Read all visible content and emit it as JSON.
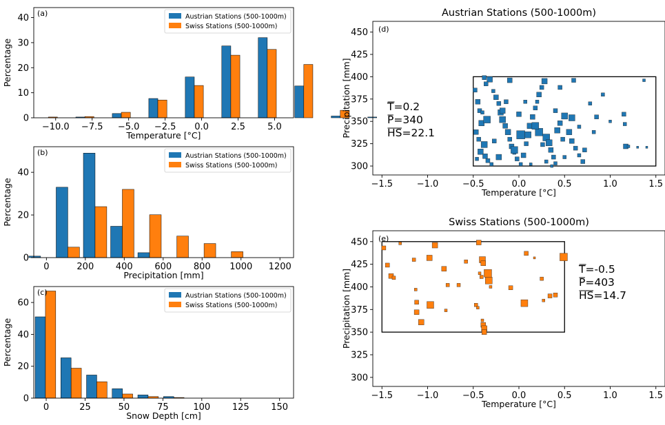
{
  "colors": {
    "austria": "#1f77b4",
    "swiss": "#ff7f0e",
    "edge": "#000000"
  },
  "legend_labels": [
    "Austrian Stations (500-1000m)",
    "Swiss Stations (500-1000m)"
  ],
  "chart_data": [
    {
      "id": "a",
      "type": "bar",
      "panel_label": "(a)",
      "xlabel": "Temperature [°C]",
      "ylabel": "Percentage",
      "xlim": [
        -11.5,
        6.3
      ],
      "ylim": [
        0,
        44
      ],
      "xticks": [
        -10.0,
        -7.5,
        -5.0,
        -2.5,
        0.0,
        2.5,
        5.0
      ],
      "xtick_labels": [
        "−10.0",
        "−7.5",
        "−5.0",
        "−2.5",
        "0.0",
        "2.5",
        "5.0"
      ],
      "yticks": [
        0,
        10,
        20,
        30,
        40
      ],
      "ytick_labels": [
        "0",
        "10",
        "20",
        "30",
        "40"
      ],
      "legend": "top-right",
      "bar_width": 0.62,
      "categories": [
        -10.5,
        -8.0,
        -5.5,
        -3.0,
        -0.5,
        2.0,
        4.5,
        7.0,
        9.5,
        12.0
      ],
      "series": [
        {
          "name": "Austrian Stations (500-1000m)",
          "values": [
            0.0,
            0.3,
            1.7,
            7.7,
            16.3,
            28.7,
            32.0,
            12.7,
            0.7,
            0.3
          ]
        },
        {
          "name": "Swiss Stations (500-1000m)",
          "values": [
            0.3,
            0.5,
            2.2,
            7.1,
            12.9,
            25.0,
            27.3,
            21.3,
            3.0,
            0.0
          ]
        }
      ]
    },
    {
      "id": "b",
      "type": "bar",
      "panel_label": "(b)",
      "xlabel": "Precipitation [mm]",
      "ylabel": "Percentage",
      "xlim": [
        -65,
        1270
      ],
      "ylim": [
        0,
        52
      ],
      "xticks": [
        0,
        200,
        400,
        600,
        800,
        1000,
        1200
      ],
      "xtick_labels": [
        "0",
        "200",
        "400",
        "600",
        "800",
        "1000",
        "1200"
      ],
      "yticks": [
        0,
        20,
        40
      ],
      "ytick_labels": [
        "0",
        "20",
        "40"
      ],
      "legend": "top-right",
      "bar_width": 60,
      "categories": [
        -30,
        110,
        250,
        390,
        530,
        670,
        810,
        950,
        1090,
        1230
      ],
      "series": [
        {
          "name": "Austrian Stations (500-1000m)",
          "values": [
            0.7,
            33.0,
            49.0,
            14.7,
            2.3,
            0.0,
            0.0,
            0.0,
            0.0,
            0.0
          ]
        },
        {
          "name": "Swiss Stations (500-1000m)",
          "values": [
            0.0,
            4.9,
            23.9,
            32.0,
            20.1,
            10.1,
            6.6,
            2.8,
            0.0,
            0.0
          ]
        }
      ]
    },
    {
      "id": "c",
      "type": "bar",
      "panel_label": "(c)",
      "xlabel": "Snow Depth [cm]",
      "ylabel": "Percentage",
      "xlim": [
        -8,
        159
      ],
      "ylim": [
        0,
        70
      ],
      "xticks": [
        0,
        25,
        50,
        75,
        100,
        125,
        150
      ],
      "xtick_labels": [
        "0",
        "25",
        "50",
        "75",
        "100",
        "125",
        "150"
      ],
      "yticks": [
        0,
        20,
        40,
        60
      ],
      "ytick_labels": [
        "0",
        "20",
        "40",
        "60"
      ],
      "legend": "top-right",
      "bar_width": 6.6,
      "categories": [
        -0.5,
        16,
        32.5,
        49,
        65.5,
        82,
        98.5,
        115,
        131.5,
        148
      ],
      "series": [
        {
          "name": "Austrian Stations (500-1000m)",
          "values": [
            51.0,
            25.3,
            14.5,
            5.9,
            2.0,
            1.0,
            0.0,
            0.0,
            0.0,
            0.0
          ]
        },
        {
          "name": "Swiss Stations (500-1000m)",
          "values": [
            67.2,
            18.8,
            10.3,
            2.6,
            1.0,
            0.4,
            0.0,
            0.0,
            0.0,
            0.0
          ]
        }
      ]
    },
    {
      "id": "d",
      "type": "scatter",
      "panel_label": "(d)",
      "title": "Austrian Stations (500-1000m)",
      "xlabel": "Temperature [°C]",
      "ylabel": "Precipitation [mm]",
      "xlim": [
        -1.6,
        1.6
      ],
      "ylim": [
        290,
        462
      ],
      "xticks": [
        -1.5,
        -1.0,
        -0.5,
        0.0,
        0.5,
        1.0,
        1.5
      ],
      "xtick_labels": [
        "−1.5",
        "−1.0",
        "−0.5",
        "0.0",
        "0.5",
        "1.0",
        "1.5"
      ],
      "yticks": [
        300,
        325,
        350,
        375,
        400,
        425,
        450
      ],
      "ytick_labels": [
        "300",
        "325",
        "350",
        "375",
        "400",
        "425",
        "450"
      ],
      "box": {
        "x": [
          -0.5,
          1.5
        ],
        "y": [
          300,
          400
        ]
      },
      "stats": {
        "t": "T=0.2",
        "p": "P=340",
        "hs": "HS=22.1"
      },
      "stat_symbols": {
        "t": "T",
        "p": "P",
        "hs": "HS"
      },
      "point_color": "#1f77b4",
      "points": [
        [
          -0.48,
          385,
          6
        ],
        [
          -0.45,
          372,
          7
        ],
        [
          -0.43,
          362,
          6
        ],
        [
          -0.41,
          348,
          8
        ],
        [
          -0.47,
          338,
          7
        ],
        [
          -0.44,
          330,
          6
        ],
        [
          -0.38,
          324,
          9
        ],
        [
          -0.42,
          316,
          8
        ],
        [
          -0.37,
          311,
          7
        ],
        [
          -0.34,
          306,
          6
        ],
        [
          -0.3,
          302,
          5
        ],
        [
          -0.46,
          308,
          5
        ],
        [
          -0.32,
          397,
          8
        ],
        [
          -0.36,
          392,
          6
        ],
        [
          -0.28,
          384,
          5
        ],
        [
          -0.25,
          377,
          7
        ],
        [
          -0.22,
          370,
          6
        ],
        [
          -0.2,
          360,
          8
        ],
        [
          -0.18,
          352,
          9
        ],
        [
          -0.15,
          345,
          7
        ],
        [
          -0.12,
          338,
          8
        ],
        [
          -0.1,
          330,
          6
        ],
        [
          -0.08,
          322,
          7
        ],
        [
          -0.05,
          315,
          5
        ],
        [
          -0.02,
          308,
          6
        ],
        [
          0.02,
          302,
          5
        ],
        [
          0.05,
          312,
          7
        ],
        [
          0.08,
          325,
          6
        ],
        [
          0.1,
          335,
          9
        ],
        [
          0.12,
          345,
          8
        ],
        [
          0.15,
          355,
          7
        ],
        [
          0.18,
          365,
          6
        ],
        [
          0.2,
          372,
          5
        ],
        [
          0.22,
          380,
          7
        ],
        [
          0.25,
          388,
          6
        ],
        [
          0.28,
          395,
          8
        ],
        [
          0.3,
          332,
          10
        ],
        [
          0.33,
          326,
          9
        ],
        [
          0.35,
          318,
          7
        ],
        [
          0.38,
          310,
          6
        ],
        [
          0.4,
          303,
          5
        ],
        [
          0.42,
          340,
          8
        ],
        [
          0.45,
          348,
          7
        ],
        [
          0.5,
          356,
          9
        ],
        [
          0.55,
          338,
          8
        ],
        [
          0.58,
          328,
          7
        ],
        [
          0.62,
          320,
          6
        ],
        [
          0.66,
          312,
          5
        ],
        [
          0.7,
          305,
          6
        ],
        [
          0.72,
          318,
          6
        ],
        [
          0.78,
          370,
          5
        ],
        [
          0.85,
          355,
          6
        ],
        [
          0.92,
          380,
          5
        ],
        [
          1.0,
          350,
          4
        ],
        [
          1.15,
          358,
          6
        ],
        [
          1.16,
          347,
          5
        ],
        [
          1.17,
          322,
          7
        ],
        [
          1.2,
          322,
          4
        ],
        [
          1.3,
          321,
          3
        ],
        [
          1.4,
          321,
          3
        ],
        [
          1.37,
          396,
          4
        ],
        [
          -0.05,
          318,
          10
        ],
        [
          0.02,
          335,
          12
        ],
        [
          0.22,
          338,
          11
        ],
        [
          0.58,
          354,
          9
        ],
        [
          -0.35,
          352,
          10
        ],
        [
          -0.18,
          362,
          8
        ],
        [
          0.0,
          358,
          7
        ],
        [
          0.45,
          388,
          6
        ],
        [
          0.6,
          396,
          6
        ],
        [
          -0.1,
          396,
          7
        ],
        [
          0.26,
          324,
          6
        ],
        [
          0.66,
          344,
          5
        ],
        [
          0.82,
          338,
          5
        ],
        [
          -0.27,
          328,
          6
        ],
        [
          0.13,
          302,
          4
        ],
        [
          0.36,
          300,
          4
        ],
        [
          -0.38,
          399,
          6
        ],
        [
          0.5,
          310,
          5
        ],
        [
          -0.22,
          310,
          8
        ],
        [
          0.18,
          345,
          10
        ],
        [
          0.07,
          372,
          5
        ],
        [
          -0.4,
          360,
          5
        ],
        [
          0.4,
          362,
          6
        ],
        [
          0.48,
          330,
          6
        ],
        [
          0.3,
          305,
          5
        ],
        [
          -0.14,
          372,
          6
        ]
      ]
    },
    {
      "id": "e",
      "type": "scatter",
      "panel_label": "(e)",
      "title": "Swiss Stations (500-1000m)",
      "xlabel": "Temperature [°C]",
      "ylabel": "Precipitation [mm]",
      "xlim": [
        -1.6,
        1.6
      ],
      "ylim": [
        290,
        462
      ],
      "xticks": [
        -1.5,
        -1.0,
        -0.5,
        0.0,
        0.5,
        1.0,
        1.5
      ],
      "xtick_labels": [
        "−1.5",
        "−1.0",
        "−0.5",
        "0.0",
        "0.5",
        "1.0",
        "1.5"
      ],
      "yticks": [
        300,
        325,
        350,
        375,
        400,
        425,
        450
      ],
      "ytick_labels": [
        "300",
        "325",
        "350",
        "375",
        "400",
        "425",
        "450"
      ],
      "box": {
        "x": [
          -1.5,
          0.5
        ],
        "y": [
          350,
          450
        ]
      },
      "stats": {
        "t": "T=-0.5",
        "p": "P=403",
        "hs": "HS=14.7"
      },
      "stat_symbols": {
        "t": "T",
        "p": "P",
        "hs": "HS"
      },
      "point_color": "#ff7f0e",
      "points": [
        [
          -1.48,
          443,
          6
        ],
        [
          -1.44,
          424,
          6
        ],
        [
          -1.4,
          412,
          7
        ],
        [
          -1.37,
          410,
          5
        ],
        [
          -1.3,
          448,
          4
        ],
        [
          -1.15,
          430,
          5
        ],
        [
          -1.13,
          397,
          4
        ],
        [
          -1.12,
          383,
          6
        ],
        [
          -1.12,
          372,
          7
        ],
        [
          -1.07,
          361,
          8
        ],
        [
          -0.98,
          432,
          8
        ],
        [
          -0.97,
          380,
          10
        ],
        [
          -0.92,
          446,
          8
        ],
        [
          -0.82,
          420,
          7
        ],
        [
          -0.8,
          374,
          4
        ],
        [
          -0.78,
          402,
          5
        ],
        [
          -0.66,
          402,
          5
        ],
        [
          -0.58,
          428,
          5
        ],
        [
          -0.47,
          380,
          5
        ],
        [
          -0.45,
          377,
          4
        ],
        [
          -0.44,
          449,
          7
        ],
        [
          -0.43,
          415,
          4
        ],
        [
          -0.41,
          411,
          5
        ],
        [
          -0.4,
          430,
          9
        ],
        [
          -0.39,
          426,
          7
        ],
        [
          -0.4,
          363,
          4
        ],
        [
          -0.39,
          358,
          7
        ],
        [
          -0.38,
          354,
          8
        ],
        [
          -0.38,
          350,
          7
        ],
        [
          -0.34,
          415,
          11
        ],
        [
          -0.33,
          407,
          10
        ],
        [
          -0.31,
          400,
          4
        ],
        [
          -0.09,
          399,
          6
        ],
        [
          0.06,
          382,
          10
        ],
        [
          0.08,
          437,
          6
        ],
        [
          0.17,
          432,
          3
        ],
        [
          0.25,
          409,
          5
        ],
        [
          0.27,
          385,
          4
        ],
        [
          0.34,
          390,
          6
        ],
        [
          0.4,
          391,
          6
        ],
        [
          0.49,
          433,
          11
        ]
      ]
    }
  ]
}
